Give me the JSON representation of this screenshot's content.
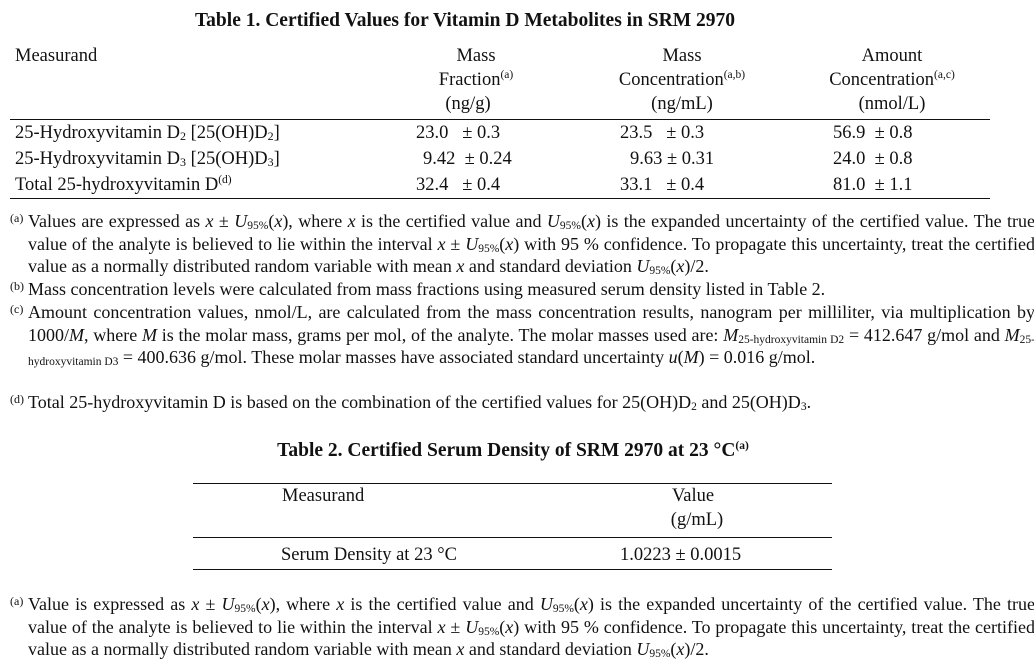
{
  "table1": {
    "title": "Table 1.  Certified Values for Vitamin D Metabolites in SRM 2970",
    "headers": {
      "measurand": "Measurand",
      "mass_fraction": {
        "line1": "Mass",
        "line2": "Fraction",
        "sup": "(a)",
        "unit": "(ng/g)"
      },
      "mass_conc": {
        "line1": "Mass",
        "line2": "Concentration",
        "sup": "(a,b)",
        "unit": "(ng/mL)"
      },
      "amount_conc": {
        "line1": "Amount",
        "line2": "Concentration",
        "sup": "(a,c)",
        "unit": "(nmol/L)"
      }
    },
    "rows": [
      {
        "name": "25-Hydroxyvitamin D",
        "sub": "2",
        "name2": " [25(OH)D",
        "sub2": "2",
        "name3": "]",
        "sup": "",
        "mass_fraction": "23.0   ± 0.3",
        "mass_conc": "23.5   ± 0.3",
        "amount_conc": "56.9  ± 0.8"
      },
      {
        "name": "25-Hydroxyvitamin D",
        "sub": "3",
        "name2": " [25(OH)D",
        "sub2": "3",
        "name3": "]",
        "sup": "",
        "mass_fraction": "9.42  ± 0.24",
        "mass_conc": "9.63 ± 0.31",
        "amount_conc": "24.0  ± 0.8"
      },
      {
        "name": "Total 25-hydroxyvitamin D",
        "sub": "",
        "name2": "",
        "sub2": "",
        "name3": "",
        "sup": "(d)",
        "mass_fraction": "32.4   ± 0.4",
        "mass_conc": "33.1   ± 0.4",
        "amount_conc": "81.0  ± 1.1"
      }
    ],
    "footnotes": [
      {
        "marker": "(a)",
        "segments": [
          [
            "t",
            "Values are expressed as "
          ],
          [
            "i",
            "x"
          ],
          [
            "t",
            " ± "
          ],
          [
            "i",
            "U"
          ],
          [
            "s",
            "95%"
          ],
          [
            "t",
            "("
          ],
          [
            "i",
            "x"
          ],
          [
            "t",
            "), where "
          ],
          [
            "i",
            "x"
          ],
          [
            "t",
            " is the certified value and "
          ],
          [
            "i",
            "U"
          ],
          [
            "s",
            "95%"
          ],
          [
            "t",
            "("
          ],
          [
            "i",
            "x"
          ],
          [
            "t",
            ") is the expanded uncertainty of the certified value.  The true value of the analyte is believed to lie within the interval "
          ],
          [
            "i",
            "x"
          ],
          [
            "t",
            " ± "
          ],
          [
            "i",
            "U"
          ],
          [
            "s",
            "95%"
          ],
          [
            "t",
            "("
          ],
          [
            "i",
            "x"
          ],
          [
            "t",
            ") with 95 % confidence.  To propagate this uncertainty, treat the certified value as a normally distributed random variable with mean "
          ],
          [
            "i",
            "x"
          ],
          [
            "t",
            " and standard deviation "
          ],
          [
            "i",
            "U"
          ],
          [
            "s",
            "95%"
          ],
          [
            "t",
            "("
          ],
          [
            "i",
            "x"
          ],
          [
            "t",
            ")/2."
          ]
        ]
      },
      {
        "marker": "(b)",
        "segments": [
          [
            "t",
            "Mass concentration levels were calculated from mass fractions using measured serum density listed in Table 2."
          ]
        ]
      },
      {
        "marker": "(c)",
        "segments": [
          [
            "t",
            "Amount concentration values, nmol/L, are calculated from the mass concentration results, nanogram per milliliter, via multiplication by 1000/"
          ],
          [
            "i",
            "M"
          ],
          [
            "t",
            ", where "
          ],
          [
            "i",
            "M"
          ],
          [
            "t",
            " is the molar mass, grams per mol, of the analyte.  The molar masses used are: "
          ],
          [
            "i",
            "M"
          ],
          [
            "s",
            "25-hydroxyvitamin D2"
          ],
          [
            "t",
            " = 412.647 g/mol  and  "
          ],
          [
            "i",
            "M"
          ],
          [
            "s",
            "25-hydroxyvitamin D3"
          ],
          [
            "t",
            " = 400.636 g/mol.  These molar masses have associated standard uncertainty "
          ],
          [
            "i",
            "u"
          ],
          [
            "t",
            "("
          ],
          [
            "i",
            "M"
          ],
          [
            "t",
            ") = 0.016 g/mol."
          ]
        ]
      },
      {
        "marker": "(d)",
        "segments": [
          [
            "t",
            "Total 25-hydroxyvitamin D is based on the combination of the certified values for 25(OH)D"
          ],
          [
            "s",
            "2"
          ],
          [
            "t",
            " and 25(OH)D"
          ],
          [
            "s",
            "3"
          ],
          [
            "t",
            "."
          ]
        ]
      }
    ]
  },
  "table2": {
    "title": "Table 2.  Certified Serum Density of SRM 2970 at 23 °C",
    "title_sup": "(a)",
    "headers": {
      "measurand": "Measurand",
      "value": "Value",
      "unit": "(g/mL)"
    },
    "rows": [
      {
        "name": "Serum Density at 23 °C",
        "value": "1.0223  ±  0.0015"
      }
    ],
    "footnotes": [
      {
        "marker": "(a)",
        "segments": [
          [
            "t",
            "Value is expressed as "
          ],
          [
            "i",
            "x"
          ],
          [
            "t",
            " ± "
          ],
          [
            "i",
            "U"
          ],
          [
            "s",
            "95%"
          ],
          [
            "t",
            "("
          ],
          [
            "i",
            "x"
          ],
          [
            "t",
            "), where "
          ],
          [
            "i",
            "x"
          ],
          [
            "t",
            " is the certified value and "
          ],
          [
            "i",
            "U"
          ],
          [
            "s",
            "95%"
          ],
          [
            "t",
            "("
          ],
          [
            "i",
            "x"
          ],
          [
            "t",
            ") is the expanded uncertainty of the certified value.  The true value of the analyte is believed to lie within the interval "
          ],
          [
            "i",
            "x"
          ],
          [
            "t",
            " ± "
          ],
          [
            "i",
            "U"
          ],
          [
            "s",
            "95%"
          ],
          [
            "t",
            "("
          ],
          [
            "i",
            "x"
          ],
          [
            "t",
            ") with 95 % confidence.  To propagate this uncertainty, treat the certified value as a normally distributed random variable with mean "
          ],
          [
            "i",
            "x"
          ],
          [
            "t",
            " and standard deviation "
          ],
          [
            "i",
            "U"
          ],
          [
            "s",
            "95%"
          ],
          [
            "t",
            "("
          ],
          [
            "i",
            "x"
          ],
          [
            "t",
            ")/2."
          ]
        ]
      }
    ]
  }
}
